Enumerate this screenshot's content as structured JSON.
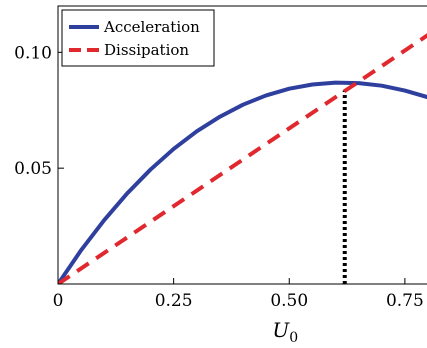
{
  "chart_data": {
    "type": "line",
    "xlabel": "U",
    "xlabel_subscript": "0",
    "ylabel": "",
    "title": "",
    "xlim": [
      0,
      0.8
    ],
    "ylim": [
      0,
      0.12
    ],
    "xticks": [
      0,
      0.25,
      0.5,
      0.75
    ],
    "xtick_labels": [
      "0",
      "0.25",
      "0.50",
      "0.75"
    ],
    "yticks": [
      0.05,
      0.1
    ],
    "ytick_labels": [
      "0.05",
      "0.10"
    ],
    "grid": false,
    "legend_position": "top-left",
    "series": [
      {
        "name": "Acceleration",
        "color": "#2f3f9e",
        "style": "solid",
        "x": [
          0.0,
          0.05,
          0.1,
          0.15,
          0.2,
          0.25,
          0.3,
          0.35,
          0.4,
          0.45,
          0.5,
          0.55,
          0.6,
          0.65,
          0.7,
          0.75,
          0.8
        ],
        "y": [
          0.0,
          0.0146,
          0.0276,
          0.0392,
          0.0494,
          0.0583,
          0.0659,
          0.0722,
          0.0774,
          0.0814,
          0.0843,
          0.0861,
          0.0869,
          0.0867,
          0.0856,
          0.0835,
          0.0806
        ]
      },
      {
        "name": "Dissipation",
        "color": "#e0282e",
        "style": "dashed",
        "x": [
          0.0,
          0.8
        ],
        "y": [
          0.0,
          0.1075
        ]
      }
    ],
    "annotations": [
      {
        "type": "vertical-dotted-line",
        "x": 0.62,
        "y_from": 0.0,
        "y_to": 0.0835,
        "color": "#000000"
      }
    ]
  }
}
